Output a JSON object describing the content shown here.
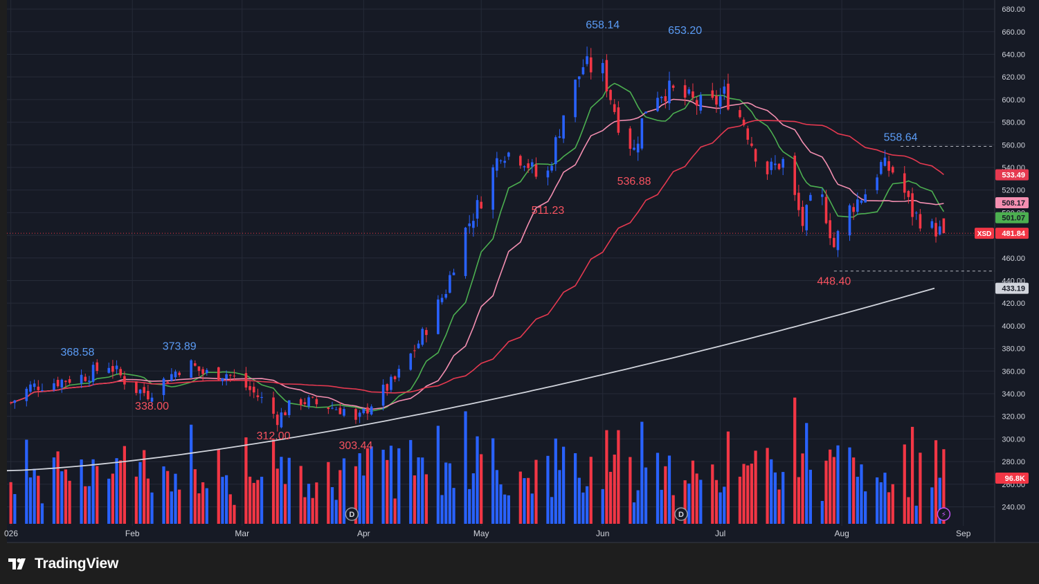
{
  "chart_data": {
    "type": "candlestick",
    "symbol": "XSD",
    "y_ticks": [
      "240.00",
      "260.00",
      "280.00",
      "300.00",
      "320.00",
      "340.00",
      "360.00",
      "380.00",
      "400.00",
      "420.00",
      "440.00",
      "460.00",
      "480.00",
      "500.00",
      "520.00",
      "540.00",
      "560.00",
      "580.00",
      "600.00",
      "620.00",
      "640.00",
      "660.00",
      "680.00"
    ],
    "ylim": [
      225,
      688
    ],
    "x_ticks": [
      {
        "label": "026",
        "date": "2026-01-01"
      },
      {
        "label": "Feb",
        "date": "2026-02-01"
      },
      {
        "label": "Mar",
        "date": "2026-03-01"
      },
      {
        "label": "Apr",
        "date": "2026-04-01"
      },
      {
        "label": "May",
        "date": "2026-05-01"
      },
      {
        "label": "Jun",
        "date": "2026-06-01"
      },
      {
        "label": "Jul",
        "date": "2026-07-01"
      },
      {
        "label": "Aug",
        "date": "2026-08-01"
      },
      {
        "label": "Sep",
        "date": "2026-09-01"
      }
    ],
    "date_range": [
      "2025-12-31",
      "2026-09-09"
    ],
    "closes": [
      {
        "date": "2026-01-01",
        "close": 332
      },
      {
        "date": "2026-01-06",
        "close": 346
      },
      {
        "date": "2026-01-13",
        "close": 351
      },
      {
        "date": "2026-01-20",
        "close": 356
      },
      {
        "date": "2026-01-26",
        "close": 366
      },
      {
        "date": "2026-02-01",
        "close": 345
      },
      {
        "date": "2026-02-05",
        "close": 340
      },
      {
        "date": "2026-02-10",
        "close": 354
      },
      {
        "date": "2026-02-15",
        "close": 368
      },
      {
        "date": "2026-02-19",
        "close": 358
      },
      {
        "date": "2026-02-25",
        "close": 358
      },
      {
        "date": "2026-03-02",
        "close": 346
      },
      {
        "date": "2026-03-06",
        "close": 335
      },
      {
        "date": "2026-03-10",
        "close": 318
      },
      {
        "date": "2026-03-15",
        "close": 335
      },
      {
        "date": "2026-03-21",
        "close": 330
      },
      {
        "date": "2026-03-27",
        "close": 326
      },
      {
        "date": "2026-03-30",
        "close": 314
      },
      {
        "date": "2026-04-04",
        "close": 336
      },
      {
        "date": "2026-04-09",
        "close": 352
      },
      {
        "date": "2026-04-15",
        "close": 385
      },
      {
        "date": "2026-04-22",
        "close": 432
      },
      {
        "date": "2026-04-26",
        "close": 478
      },
      {
        "date": "2026-05-01",
        "close": 512
      },
      {
        "date": "2026-05-06",
        "close": 555
      },
      {
        "date": "2026-05-12",
        "close": 548
      },
      {
        "date": "2026-05-17",
        "close": 522
      },
      {
        "date": "2026-05-22",
        "close": 588
      },
      {
        "date": "2026-05-27",
        "close": 630
      },
      {
        "date": "2026-06-01",
        "close": 625
      },
      {
        "date": "2026-06-05",
        "close": 580
      },
      {
        "date": "2026-06-09",
        "close": 555
      },
      {
        "date": "2026-06-13",
        "close": 606
      },
      {
        "date": "2026-06-18",
        "close": 608
      },
      {
        "date": "2026-06-23",
        "close": 600
      },
      {
        "date": "2026-06-28",
        "close": 592
      },
      {
        "date": "2026-07-02",
        "close": 605
      },
      {
        "date": "2026-07-07",
        "close": 580
      },
      {
        "date": "2026-07-12",
        "close": 535
      },
      {
        "date": "2026-07-17",
        "close": 545
      },
      {
        "date": "2026-07-22",
        "close": 490
      },
      {
        "date": "2026-07-26",
        "close": 525
      },
      {
        "date": "2026-07-30",
        "close": 470
      },
      {
        "date": "2026-08-02",
        "close": 500
      },
      {
        "date": "2026-08-07",
        "close": 518
      },
      {
        "date": "2026-08-11",
        "close": 542
      },
      {
        "date": "2026-08-15",
        "close": 535
      },
      {
        "date": "2026-08-19",
        "close": 500
      },
      {
        "date": "2026-08-23",
        "close": 488
      },
      {
        "date": "2026-08-27",
        "close": 481.84
      }
    ],
    "moving_averages": [
      {
        "name": "",
        "color": "#4caf50",
        "last": "501.07"
      },
      {
        "name": "",
        "color": "#f48fb1",
        "last": "508.17"
      },
      {
        "name": "",
        "color": "#e53950",
        "last": "533.49"
      },
      {
        "name": "",
        "color": "#d1d4dc",
        "last": "433.19"
      }
    ],
    "last_price": "481.84",
    "volume_badge": "96.8K",
    "annotations": [
      {
        "text": "368.58",
        "color": "#5b9cf6",
        "date": "2026-01-18",
        "price": 368.58,
        "pos": "above"
      },
      {
        "text": "373.89",
        "color": "#5b9cf6",
        "date": "2026-02-13",
        "price": 373.89,
        "pos": "above"
      },
      {
        "text": "338.00",
        "color": "#f7525f",
        "date": "2026-02-06",
        "price": 338.0,
        "pos": "below"
      },
      {
        "text": "312.00",
        "color": "#f7525f",
        "date": "2026-03-09",
        "price": 312.0,
        "pos": "below"
      },
      {
        "text": "303.44",
        "color": "#f7525f",
        "date": "2026-03-30",
        "price": 303.44,
        "pos": "below"
      },
      {
        "text": "511.23",
        "color": "#f7525f",
        "date": "2026-05-18",
        "price": 511.23,
        "pos": "below"
      },
      {
        "text": "658.14",
        "color": "#5b9cf6",
        "date": "2026-06-01",
        "price": 658.14,
        "pos": "above"
      },
      {
        "text": "653.20",
        "color": "#5b9cf6",
        "date": "2026-06-22",
        "price": 653.2,
        "pos": "above"
      },
      {
        "text": "536.88",
        "color": "#f7525f",
        "date": "2026-06-09",
        "price": 536.88,
        "pos": "below"
      },
      {
        "text": "558.64",
        "color": "#5b9cf6",
        "date": "2026-08-16",
        "price": 558.64,
        "pos": "above"
      },
      {
        "text": "448.40",
        "color": "#f7525f",
        "date": "2026-07-30",
        "price": 448.4,
        "pos": "below"
      }
    ],
    "dashed_levels": [
      {
        "price": 558.64,
        "from": "2026-08-16"
      },
      {
        "price": 448.4,
        "from": "2026-07-30"
      }
    ],
    "event_markers": [
      {
        "label": "D",
        "date": "2026-03-29"
      },
      {
        "label": "D",
        "date": "2026-06-21"
      },
      {
        "label": "⚡",
        "date": "2026-08-27"
      }
    ]
  },
  "colors": {
    "background": "#161a25",
    "grid": "#262b38",
    "up": "#2962ff",
    "down": "#f23645",
    "axis_text": "#d1d4dc",
    "last_price_badge": "#f23645"
  },
  "brand": {
    "name": "TradingView",
    "icon": "tradingview-logo-icon"
  }
}
